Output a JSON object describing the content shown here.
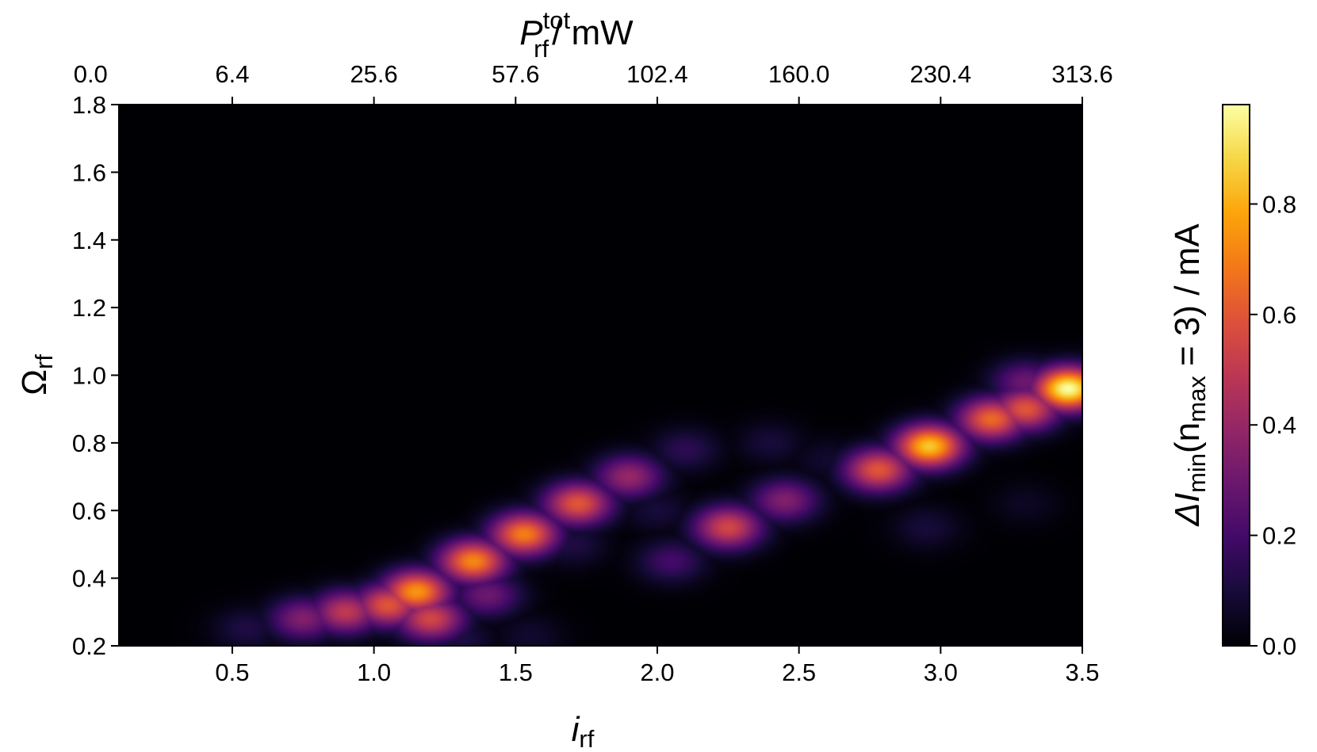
{
  "chart_data": {
    "type": "heatmap",
    "colormap": "inferno",
    "interpolation": "smooth",
    "xlabel": {
      "main": "i",
      "sub": "rf"
    },
    "ylabel": {
      "main": "Ω",
      "sub": "rf"
    },
    "top_xlabel": {
      "main": "P",
      "sub": "rf",
      "sup": "tot",
      "suffix": "/ mW"
    },
    "colorbar_label": {
      "prefix": "ΔI",
      "sub1": "min",
      "mid": "(n",
      "sub2": "max",
      "suffix": " = 3) / mA"
    },
    "xlim": [
      0.1,
      3.5
    ],
    "ylim": [
      0.2,
      1.8
    ],
    "clim": [
      0.0,
      0.98
    ],
    "x_ticks": [
      0.5,
      1.0,
      1.5,
      2.0,
      2.5,
      3.0,
      3.5
    ],
    "x_tick_labels": [
      "0.5",
      "1.0",
      "1.5",
      "2.0",
      "2.5",
      "3.0",
      "3.5"
    ],
    "y_ticks": [
      0.2,
      0.4,
      0.6,
      0.8,
      1.0,
      1.2,
      1.4,
      1.6,
      1.8
    ],
    "y_tick_labels": [
      "0.2",
      "0.4",
      "0.6",
      "0.8",
      "1.0",
      "1.2",
      "1.4",
      "1.6",
      "1.8"
    ],
    "top_x_ticks": [
      0.0,
      0.5,
      1.0,
      1.5,
      2.0,
      2.5,
      3.0,
      3.5
    ],
    "top_x_tick_labels": [
      "0.0",
      "6.4",
      "25.6",
      "57.6",
      "102.4",
      "160.0",
      "230.4",
      "313.6"
    ],
    "colorbar_ticks": [
      0.0,
      0.2,
      0.4,
      0.6,
      0.8
    ],
    "colorbar_tick_labels": [
      "0.0",
      "0.2",
      "0.4",
      "0.6",
      "0.8"
    ],
    "peaks": [
      {
        "x": 0.55,
        "y": 0.25,
        "v": 0.12
      },
      {
        "x": 0.75,
        "y": 0.28,
        "v": 0.35
      },
      {
        "x": 0.9,
        "y": 0.3,
        "v": 0.5
      },
      {
        "x": 1.05,
        "y": 0.32,
        "v": 0.6
      },
      {
        "x": 1.15,
        "y": 0.36,
        "v": 0.75
      },
      {
        "x": 1.2,
        "y": 0.28,
        "v": 0.55
      },
      {
        "x": 1.35,
        "y": 0.45,
        "v": 0.72
      },
      {
        "x": 1.4,
        "y": 0.35,
        "v": 0.3
      },
      {
        "x": 1.3,
        "y": 0.22,
        "v": 0.12
      },
      {
        "x": 1.53,
        "y": 0.53,
        "v": 0.7
      },
      {
        "x": 1.55,
        "y": 0.23,
        "v": 0.08
      },
      {
        "x": 1.72,
        "y": 0.62,
        "v": 0.6
      },
      {
        "x": 1.7,
        "y": 0.5,
        "v": 0.12
      },
      {
        "x": 1.9,
        "y": 0.7,
        "v": 0.4
      },
      {
        "x": 2.05,
        "y": 0.45,
        "v": 0.2
      },
      {
        "x": 2.1,
        "y": 0.78,
        "v": 0.15
      },
      {
        "x": 2.0,
        "y": 0.6,
        "v": 0.1
      },
      {
        "x": 2.25,
        "y": 0.55,
        "v": 0.55
      },
      {
        "x": 2.45,
        "y": 0.63,
        "v": 0.35
      },
      {
        "x": 2.4,
        "y": 0.8,
        "v": 0.1
      },
      {
        "x": 2.6,
        "y": 0.75,
        "v": 0.08
      },
      {
        "x": 2.78,
        "y": 0.72,
        "v": 0.6
      },
      {
        "x": 2.96,
        "y": 0.79,
        "v": 0.85
      },
      {
        "x": 2.95,
        "y": 0.55,
        "v": 0.1
      },
      {
        "x": 3.18,
        "y": 0.87,
        "v": 0.65
      },
      {
        "x": 3.3,
        "y": 0.9,
        "v": 0.6
      },
      {
        "x": 3.3,
        "y": 0.62,
        "v": 0.06
      },
      {
        "x": 3.3,
        "y": 0.98,
        "v": 0.3
      },
      {
        "x": 3.45,
        "y": 0.96,
        "v": 0.98
      }
    ]
  }
}
